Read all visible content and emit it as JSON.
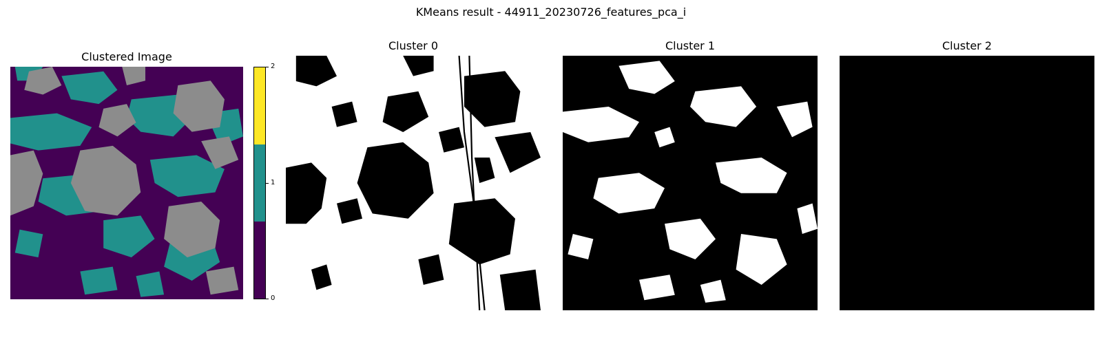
{
  "figure": {
    "suptitle": "KMeans result - 44911_20230726_features_pca_i"
  },
  "panels": [
    {
      "title": "Clustered Image"
    },
    {
      "title": "Cluster 0"
    },
    {
      "title": "Cluster 1"
    },
    {
      "title": "Cluster 2"
    }
  ],
  "colorbar": {
    "ticks": [
      "0",
      "1",
      "2"
    ],
    "colors": [
      "#440154",
      "#21918c",
      "#fde725"
    ]
  },
  "cluster_colors": {
    "cluster_0": "#440154",
    "cluster_1": "#21918c",
    "cluster_2_display": "#8c8c8c"
  }
}
